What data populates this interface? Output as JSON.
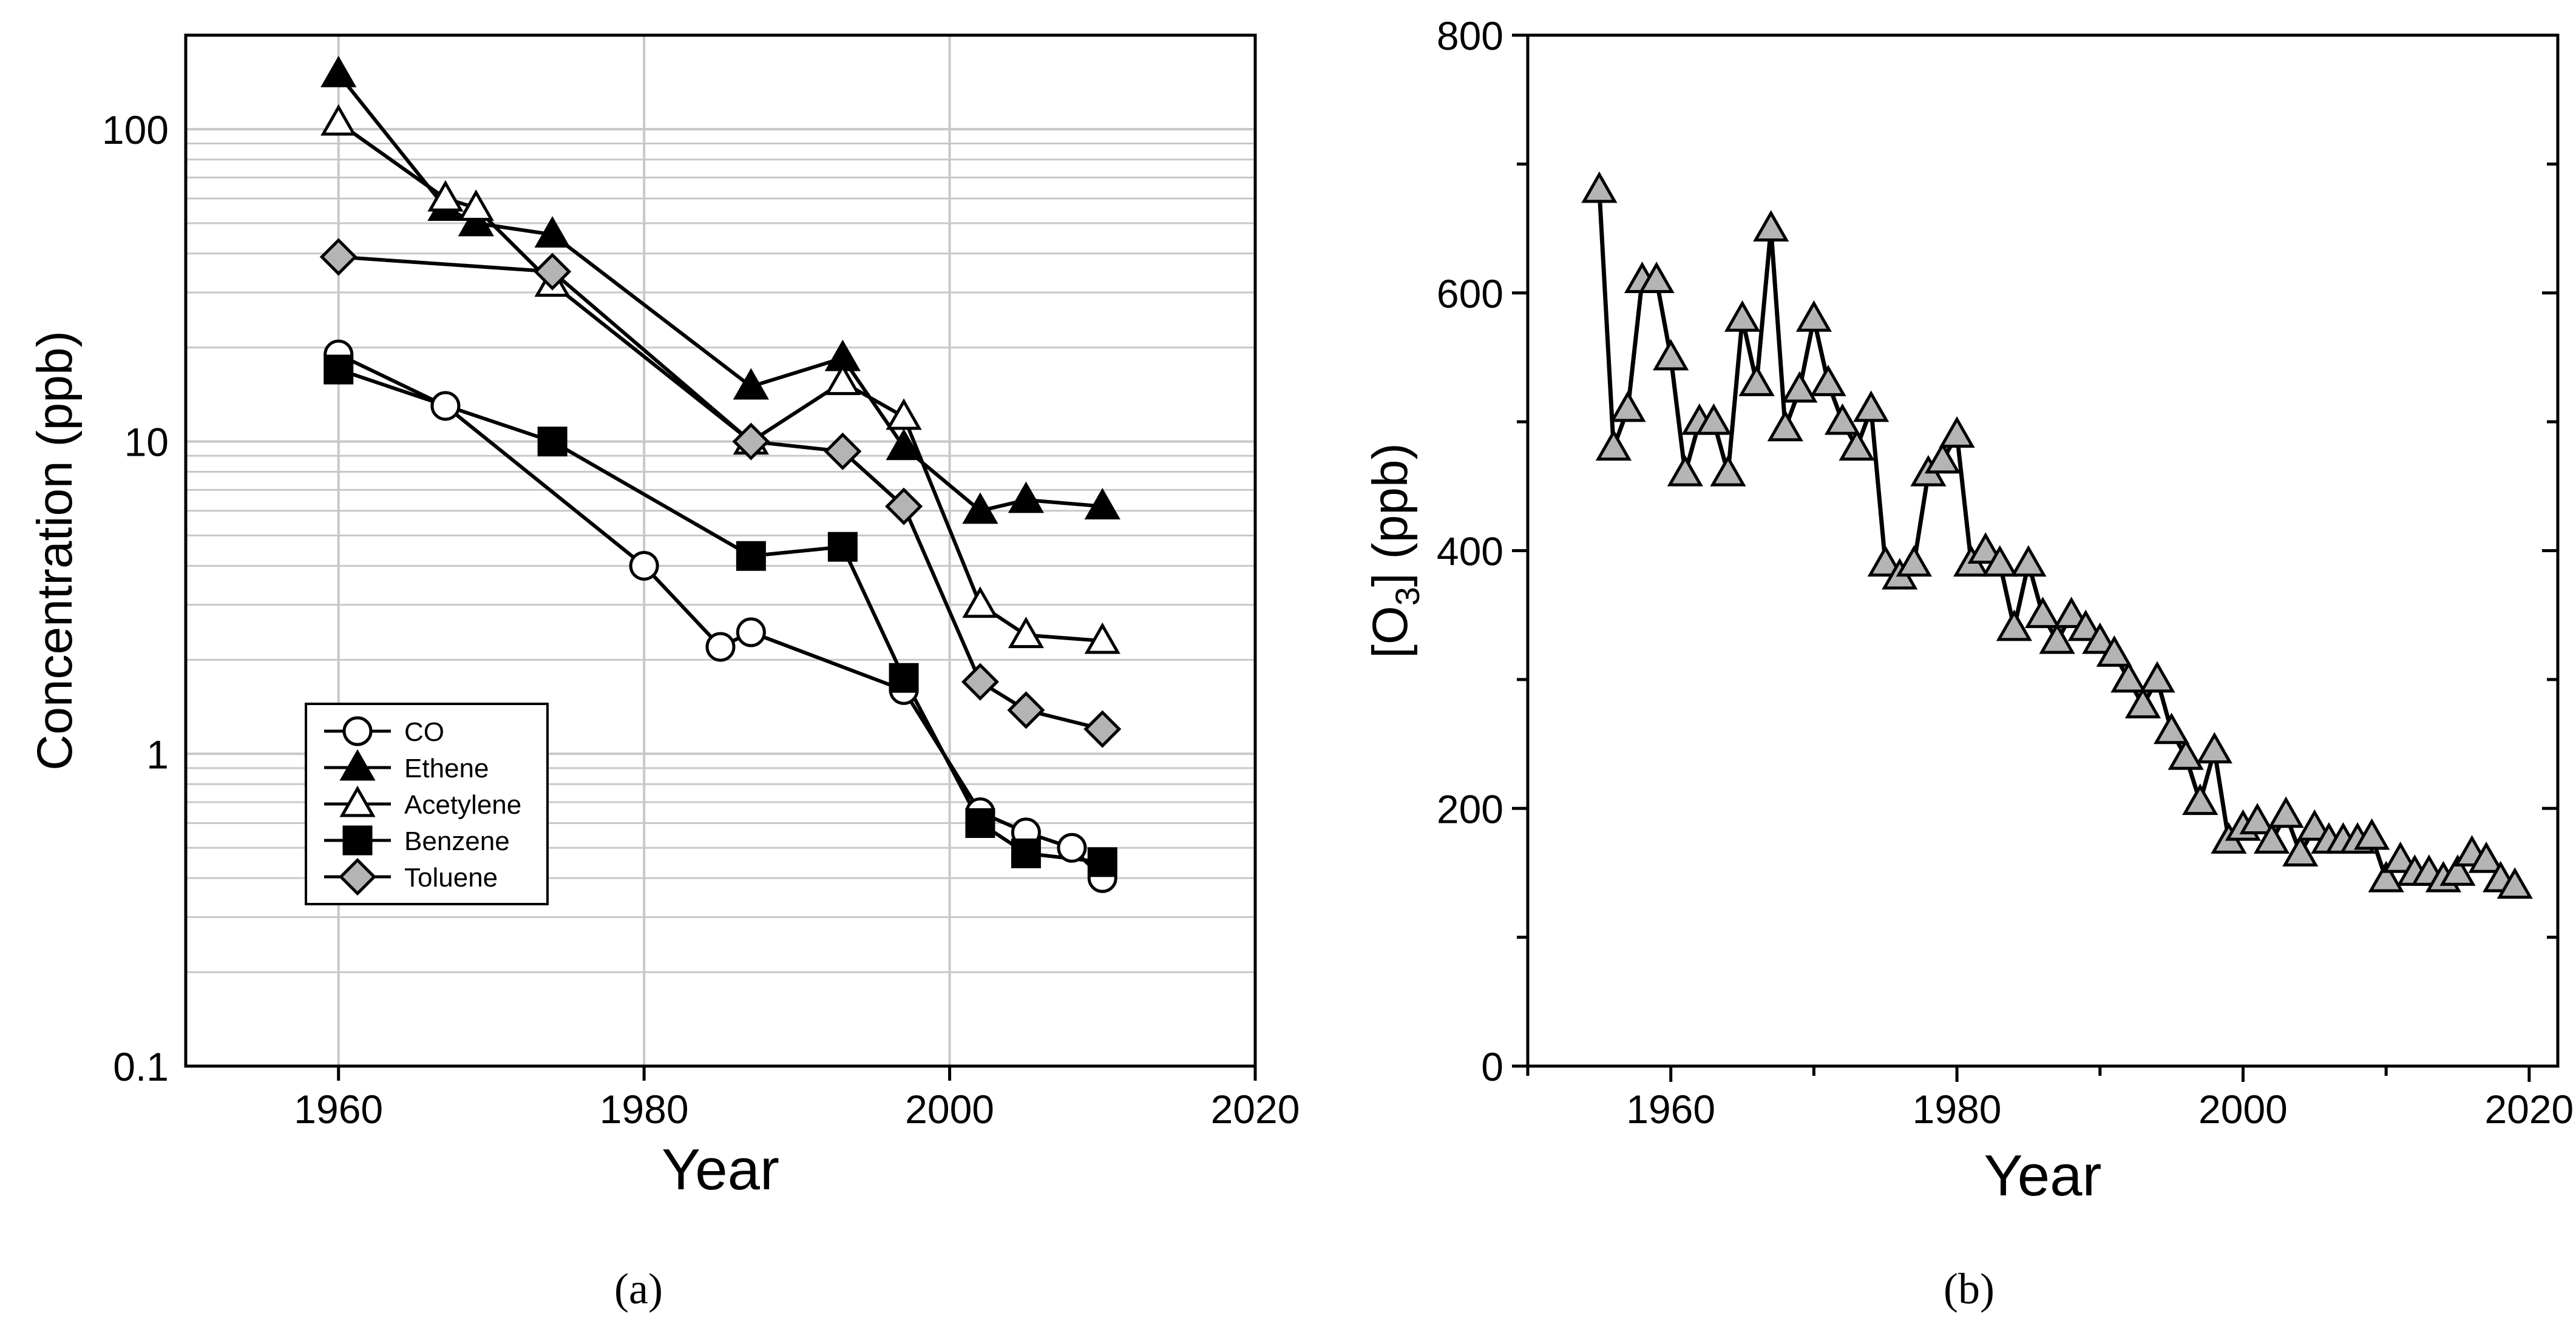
{
  "figure": {
    "panel_labels": [
      "(a)",
      "(b)"
    ]
  },
  "chart_data": [
    {
      "type": "line",
      "panel": "(a)",
      "title": "",
      "xlabel": "Year",
      "ylabel": "Concentration (ppb)",
      "xlim": [
        1950,
        2020
      ],
      "ylim": [
        0.1,
        200
      ],
      "yscale": "log",
      "xticks": [
        1960,
        1980,
        2000,
        2020
      ],
      "yticks": [
        0.1,
        1,
        10,
        100
      ],
      "ytick_labels": [
        "0.1",
        "1",
        "10",
        "100"
      ],
      "grid": true,
      "legend_position": "bottom-left",
      "series": [
        {
          "name": "CO",
          "marker": "circle-open",
          "x": [
            1960,
            1967,
            1980,
            1985,
            1987,
            1997,
            2002,
            2005,
            2008,
            2010
          ],
          "y": [
            19,
            13,
            4.0,
            2.2,
            2.45,
            1.6,
            0.65,
            0.56,
            0.5,
            0.4
          ]
        },
        {
          "name": "Ethene",
          "marker": "triangle-filled",
          "x": [
            1960,
            1967,
            1969,
            1974,
            1987,
            1993,
            1997,
            2002,
            2005,
            2010
          ],
          "y": [
            150,
            56,
            50,
            46,
            15,
            18.5,
            9.6,
            6.0,
            6.5,
            6.2
          ]
        },
        {
          "name": "Acetylene",
          "marker": "triangle-open",
          "x": [
            1960,
            1967,
            1969,
            1974,
            1987,
            1993,
            1997,
            2002,
            2005,
            2010
          ],
          "y": [
            105,
            60,
            56,
            32,
            10,
            15.5,
            12,
            3.0,
            2.4,
            2.3
          ]
        },
        {
          "name": "Benzene",
          "marker": "square-filled",
          "x": [
            1960,
            1974,
            1987,
            1993,
            1997,
            2002,
            2005,
            2010
          ],
          "y": [
            17,
            10,
            4.3,
            4.6,
            1.75,
            0.6,
            0.48,
            0.45
          ]
        },
        {
          "name": "Toluene",
          "marker": "diamond-gray",
          "x": [
            1960,
            1974,
            1987,
            1993,
            1997,
            2002,
            2005,
            2010
          ],
          "y": [
            39,
            35,
            10,
            9.3,
            6.2,
            1.7,
            1.38,
            1.2
          ]
        }
      ]
    },
    {
      "type": "line",
      "panel": "(b)",
      "title": "",
      "xlabel": "Year",
      "ylabel": "[O3] (ppb)",
      "ylabel_parts": [
        "[O",
        "3",
        "] (ppb)"
      ],
      "xlim": [
        1950,
        2022
      ],
      "ylim": [
        0,
        800
      ],
      "xticks": [
        1960,
        1980,
        2000,
        2020
      ],
      "yticks": [
        0,
        200,
        400,
        600,
        800
      ],
      "grid": false,
      "series": [
        {
          "name": "O3",
          "marker": "triangle-gray",
          "x": [
            1955,
            1956,
            1957,
            1958,
            1959,
            1960,
            1961,
            1962,
            1963,
            1964,
            1965,
            1966,
            1967,
            1968,
            1969,
            1970,
            1971,
            1972,
            1973,
            1974,
            1975,
            1976,
            1977,
            1978,
            1979,
            1980,
            1981,
            1982,
            1983,
            1984,
            1985,
            1986,
            1987,
            1988,
            1989,
            1990,
            1991,
            1992,
            1993,
            1994,
            1995,
            1996,
            1997,
            1998,
            1999,
            2000,
            2001,
            2002,
            2003,
            2004,
            2005,
            2006,
            2007,
            2008,
            2009,
            2010,
            2011,
            2012,
            2013,
            2014,
            2015,
            2016,
            2017,
            2018,
            2019
          ],
          "y": [
            680,
            480,
            510,
            610,
            610,
            550,
            460,
            500,
            500,
            460,
            580,
            530,
            650,
            495,
            525,
            580,
            530,
            500,
            480,
            510,
            390,
            380,
            390,
            460,
            470,
            490,
            390,
            400,
            390,
            340,
            390,
            350,
            330,
            350,
            340,
            330,
            320,
            300,
            280,
            300,
            260,
            240,
            205,
            245,
            175,
            185,
            190,
            175,
            195,
            165,
            185,
            175,
            175,
            175,
            178,
            145,
            160,
            150,
            150,
            145,
            150,
            165,
            160,
            145,
            140
          ]
        }
      ]
    }
  ]
}
